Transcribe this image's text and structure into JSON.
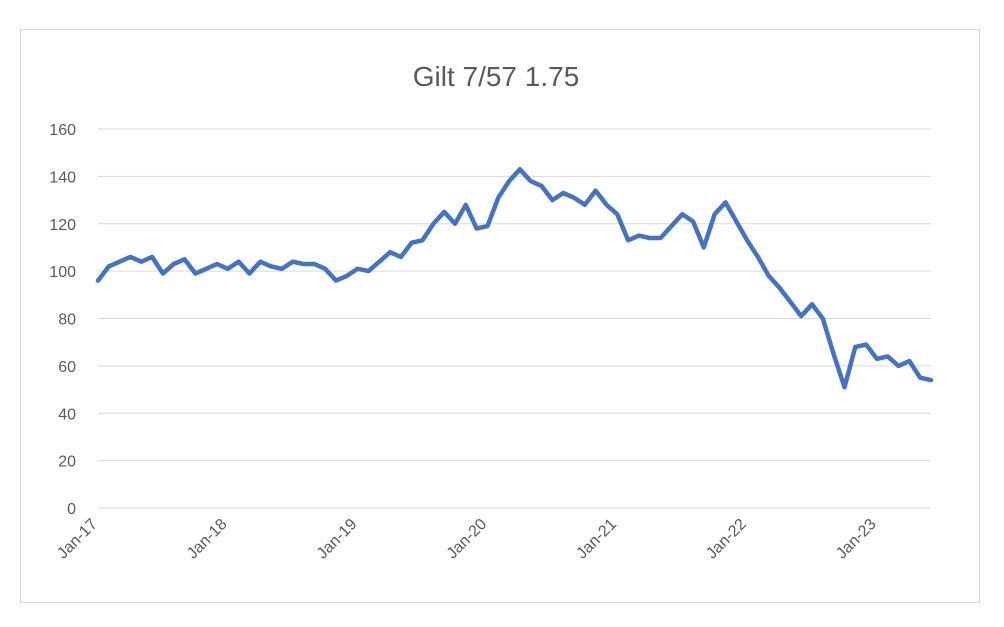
{
  "chart_data": {
    "type": "line",
    "title": "Gilt 7/57 1.75",
    "xlabel": "",
    "ylabel": "",
    "x_range": [
      "2017-01",
      "2023-06"
    ],
    "ylim": [
      0,
      160
    ],
    "y_ticks": [
      0,
      20,
      40,
      60,
      80,
      100,
      120,
      140,
      160
    ],
    "x_ticks": [
      {
        "date": "2017-01",
        "label": "Jan-17"
      },
      {
        "date": "2018-01",
        "label": "Jan-18"
      },
      {
        "date": "2019-01",
        "label": "Jan-19"
      },
      {
        "date": "2020-01",
        "label": "Jan-20"
      },
      {
        "date": "2021-01",
        "label": "Jan-21"
      },
      {
        "date": "2022-01",
        "label": "Jan-22"
      },
      {
        "date": "2023-01",
        "label": "Jan-23"
      }
    ],
    "grid": "horizontal",
    "legend": "none",
    "series_color": "#4472c4",
    "series": [
      {
        "x": [
          "2017-01",
          "2017-02",
          "2017-03",
          "2017-04",
          "2017-05",
          "2017-06",
          "2017-07",
          "2017-08",
          "2017-09",
          "2017-10",
          "2017-11",
          "2017-12",
          "2018-01",
          "2018-02",
          "2018-03",
          "2018-04",
          "2018-05",
          "2018-06",
          "2018-07",
          "2018-08",
          "2018-09",
          "2018-10",
          "2018-11",
          "2018-12",
          "2019-01",
          "2019-02",
          "2019-03",
          "2019-04",
          "2019-05",
          "2019-06",
          "2019-07",
          "2019-08",
          "2019-09",
          "2019-10",
          "2019-11",
          "2019-12",
          "2020-01",
          "2020-02",
          "2020-03",
          "2020-04",
          "2020-05",
          "2020-06",
          "2020-07",
          "2020-08",
          "2020-09",
          "2020-10",
          "2020-11",
          "2020-12",
          "2021-01",
          "2021-02",
          "2021-03",
          "2021-04",
          "2021-05",
          "2021-06",
          "2021-07",
          "2021-08",
          "2021-09",
          "2021-10",
          "2021-11",
          "2021-12",
          "2022-01",
          "2022-02",
          "2022-03",
          "2022-04",
          "2022-05",
          "2022-06",
          "2022-07",
          "2022-08",
          "2022-09",
          "2022-10",
          "2022-11",
          "2022-12",
          "2023-01",
          "2023-02",
          "2023-03",
          "2023-04",
          "2023-05",
          "2023-06"
        ],
        "y": [
          96,
          102,
          104,
          106,
          104,
          106,
          99,
          103,
          105,
          99,
          101,
          103,
          101,
          104,
          99,
          104,
          102,
          101,
          104,
          103,
          103,
          101,
          96,
          98,
          101,
          100,
          104,
          108,
          106,
          112,
          113,
          120,
          125,
          120,
          128,
          118,
          119,
          131,
          138,
          143,
          138,
          136,
          130,
          133,
          131,
          128,
          134,
          128,
          124,
          113,
          115,
          114,
          114,
          119,
          124,
          121,
          110,
          124,
          129,
          121,
          113,
          106,
          98,
          93,
          87,
          81,
          86,
          80,
          65,
          51,
          68,
          69,
          63,
          64,
          60,
          62,
          55,
          54
        ]
      }
    ]
  }
}
